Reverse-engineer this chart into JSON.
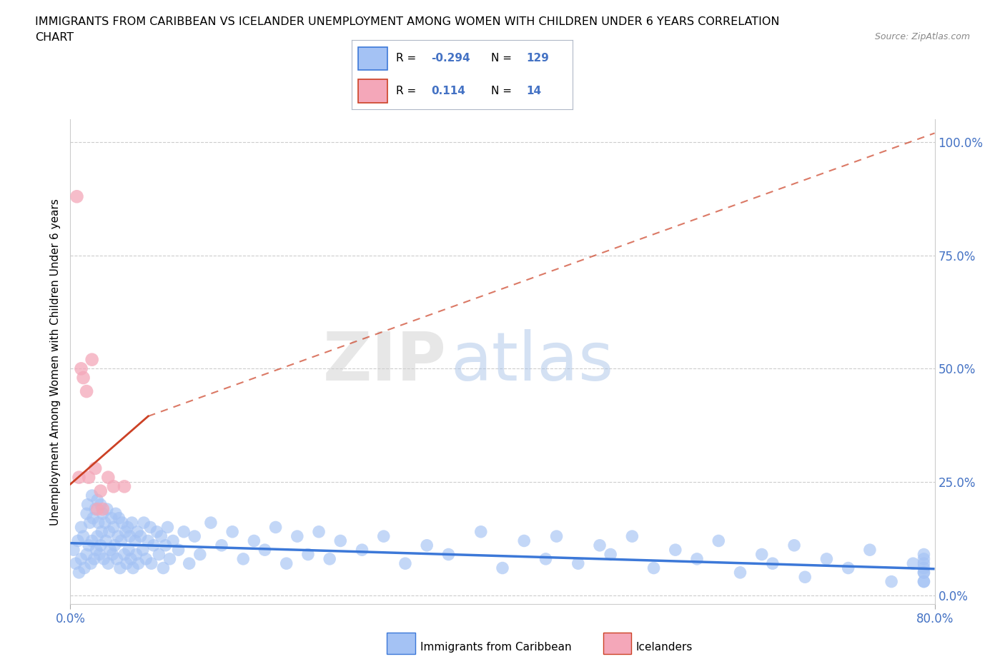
{
  "title_line1": "IMMIGRANTS FROM CARIBBEAN VS ICELANDER UNEMPLOYMENT AMONG WOMEN WITH CHILDREN UNDER 6 YEARS CORRELATION",
  "title_line2": "CHART",
  "source": "Source: ZipAtlas.com",
  "ylabel": "Unemployment Among Women with Children Under 6 years",
  "xlabel_caribbean": "Immigrants from Caribbean",
  "xlabel_icelanders": "Icelanders",
  "r_caribbean": -0.294,
  "n_caribbean": 129,
  "r_icelanders": 0.114,
  "n_icelanders": 14,
  "caribbean_color": "#a4c2f4",
  "icelander_color": "#f4a7b9",
  "caribbean_line_color": "#3c78d8",
  "icelander_line_color": "#cc4125",
  "background_color": "#ffffff",
  "xlim": [
    0.0,
    0.8
  ],
  "ylim": [
    -0.02,
    1.05
  ],
  "xtick_vals": [
    0.0,
    0.8
  ],
  "xtick_labels": [
    "0.0%",
    "80.0%"
  ],
  "ytick_vals": [
    0.0,
    0.25,
    0.5,
    0.75,
    1.0
  ],
  "ytick_labels_right": [
    "0.0%",
    "25.0%",
    "50.0%",
    "75.0%",
    "100.0%"
  ],
  "caribbean_x": [
    0.003,
    0.005,
    0.007,
    0.008,
    0.01,
    0.01,
    0.012,
    0.013,
    0.015,
    0.015,
    0.016,
    0.017,
    0.018,
    0.019,
    0.02,
    0.02,
    0.021,
    0.022,
    0.023,
    0.024,
    0.025,
    0.025,
    0.026,
    0.027,
    0.028,
    0.028,
    0.029,
    0.03,
    0.031,
    0.032,
    0.033,
    0.034,
    0.035,
    0.036,
    0.037,
    0.038,
    0.039,
    0.04,
    0.041,
    0.042,
    0.043,
    0.044,
    0.045,
    0.046,
    0.047,
    0.048,
    0.05,
    0.051,
    0.052,
    0.053,
    0.054,
    0.055,
    0.056,
    0.057,
    0.058,
    0.06,
    0.061,
    0.062,
    0.063,
    0.065,
    0.067,
    0.068,
    0.07,
    0.072,
    0.074,
    0.075,
    0.077,
    0.08,
    0.082,
    0.084,
    0.086,
    0.088,
    0.09,
    0.092,
    0.095,
    0.1,
    0.105,
    0.11,
    0.115,
    0.12,
    0.13,
    0.14,
    0.15,
    0.16,
    0.17,
    0.18,
    0.19,
    0.2,
    0.21,
    0.22,
    0.23,
    0.24,
    0.25,
    0.27,
    0.29,
    0.31,
    0.33,
    0.35,
    0.38,
    0.4,
    0.42,
    0.44,
    0.45,
    0.47,
    0.49,
    0.5,
    0.52,
    0.54,
    0.56,
    0.58,
    0.6,
    0.62,
    0.64,
    0.65,
    0.67,
    0.68,
    0.7,
    0.72,
    0.74,
    0.76,
    0.78,
    0.79,
    0.79,
    0.79,
    0.79,
    0.79,
    0.79,
    0.79,
    0.79
  ],
  "caribbean_y": [
    0.1,
    0.07,
    0.12,
    0.05,
    0.15,
    0.08,
    0.13,
    0.06,
    0.18,
    0.09,
    0.2,
    0.11,
    0.16,
    0.07,
    0.22,
    0.12,
    0.17,
    0.08,
    0.19,
    0.1,
    0.21,
    0.13,
    0.16,
    0.09,
    0.2,
    0.11,
    0.14,
    0.18,
    0.08,
    0.16,
    0.12,
    0.19,
    0.07,
    0.14,
    0.1,
    0.17,
    0.09,
    0.15,
    0.11,
    0.18,
    0.08,
    0.13,
    0.17,
    0.06,
    0.12,
    0.16,
    0.09,
    0.14,
    0.07,
    0.15,
    0.1,
    0.13,
    0.08,
    0.16,
    0.06,
    0.12,
    0.09,
    0.14,
    0.07,
    0.13,
    0.1,
    0.16,
    0.08,
    0.12,
    0.15,
    0.07,
    0.11,
    0.14,
    0.09,
    0.13,
    0.06,
    0.11,
    0.15,
    0.08,
    0.12,
    0.1,
    0.14,
    0.07,
    0.13,
    0.09,
    0.16,
    0.11,
    0.14,
    0.08,
    0.12,
    0.1,
    0.15,
    0.07,
    0.13,
    0.09,
    0.14,
    0.08,
    0.12,
    0.1,
    0.13,
    0.07,
    0.11,
    0.09,
    0.14,
    0.06,
    0.12,
    0.08,
    0.13,
    0.07,
    0.11,
    0.09,
    0.13,
    0.06,
    0.1,
    0.08,
    0.12,
    0.05,
    0.09,
    0.07,
    0.11,
    0.04,
    0.08,
    0.06,
    0.1,
    0.03,
    0.07,
    0.05,
    0.09,
    0.03,
    0.07,
    0.05,
    0.08,
    0.03,
    0.06
  ],
  "icelander_x": [
    0.006,
    0.008,
    0.01,
    0.012,
    0.015,
    0.017,
    0.02,
    0.023,
    0.025,
    0.028,
    0.03,
    0.035,
    0.04,
    0.05
  ],
  "icelander_y": [
    0.88,
    0.26,
    0.5,
    0.48,
    0.45,
    0.26,
    0.52,
    0.28,
    0.19,
    0.23,
    0.19,
    0.26,
    0.24,
    0.24
  ],
  "carline_x0": 0.0,
  "carline_x1": 0.8,
  "carline_y0": 0.115,
  "carline_y1": 0.058,
  "iceline_solid_x0": 0.0,
  "iceline_solid_x1": 0.072,
  "iceline_solid_y0": 0.245,
  "iceline_solid_y1": 0.395,
  "iceline_dash_x0": 0.072,
  "iceline_dash_x1": 0.8,
  "iceline_dash_y0": 0.395,
  "iceline_dash_y1": 1.02
}
